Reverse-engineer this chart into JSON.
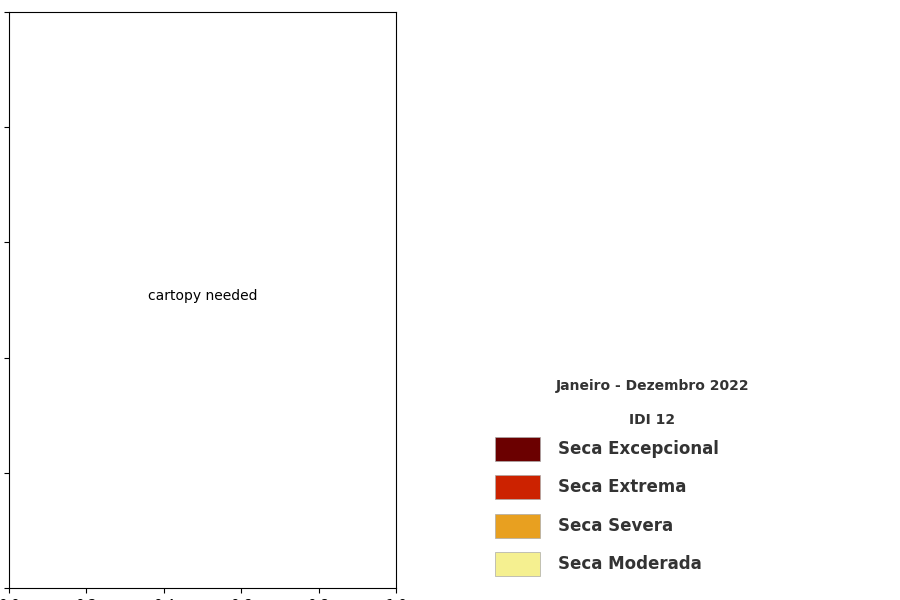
{
  "title_line1": "Janeiro - Dezembro 2022",
  "title_line2": "IDI 12",
  "legend_items": [
    {
      "label": "Seca Excepcional",
      "color": "#6B0000"
    },
    {
      "label": "Seca Extrema",
      "color": "#CC2200"
    },
    {
      "label": "Seca Severa",
      "color": "#E8A020"
    },
    {
      "label": "Seca Moderada",
      "color": "#F5F090"
    }
  ],
  "bg_color": "#FFFFFF",
  "text_color": "#333333",
  "title_fontsize": 10,
  "legend_fontsize": 12,
  "sa_xlim": [
    -82,
    -33
  ],
  "sa_ylim": [
    -56,
    13
  ],
  "mx_xlim": [
    -118,
    -86
  ],
  "mx_ylim": [
    14,
    33
  ],
  "ca_xlim": [
    -93,
    -75
  ],
  "ca_ylim": [
    7,
    22
  ]
}
